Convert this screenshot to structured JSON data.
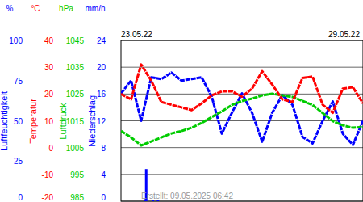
{
  "chart_data": {
    "type": "line",
    "grid": true,
    "footer": "Erstellt: 09.05.2025 06:42",
    "xlim": [
      0,
      144
    ],
    "xticks": [
      {
        "value": 0,
        "label": "23.05.22"
      },
      {
        "value": 144,
        "label": "29.05.22"
      }
    ],
    "axes": [
      {
        "name": "Luftfeuchtigkeit",
        "unit": "%",
        "color": "#0000ff",
        "lim": [
          0,
          100
        ],
        "ticks": [
          0,
          25,
          50,
          75,
          100
        ]
      },
      {
        "name": "Temperatur",
        "unit": "°C",
        "color": "#ff0000",
        "lim": [
          -20,
          40
        ],
        "ticks": [
          -20,
          -10,
          0,
          10,
          20,
          30,
          40
        ]
      },
      {
        "name": "Luftdruck",
        "unit": "hPa",
        "color": "#00cc00",
        "lim": [
          985,
          1045
        ],
        "ticks": [
          985,
          995,
          1005,
          1015,
          1025,
          1035,
          1045
        ]
      },
      {
        "name": "Niederschlag",
        "unit": "mm/h",
        "color": "#0000ff",
        "lim": [
          0,
          24
        ],
        "ticks": [
          0,
          4,
          8,
          12,
          16,
          20,
          24
        ]
      }
    ],
    "series": [
      {
        "name": "Luftfeuchtigkeit",
        "axis": 0,
        "type": "line",
        "color": "#0000ff",
        "x": [
          0,
          6,
          12,
          18,
          24,
          30,
          36,
          42,
          48,
          54,
          60,
          66,
          72,
          78,
          84,
          90,
          96,
          102,
          108,
          114,
          120,
          126,
          132,
          138,
          144
        ],
        "values": [
          67,
          75,
          50,
          77,
          76,
          80,
          75,
          76,
          77,
          65,
          42,
          55,
          67,
          55,
          37,
          55,
          66,
          60,
          40,
          36,
          50,
          62,
          42,
          35,
          50
        ]
      },
      {
        "name": "Luftdruck",
        "axis": 2,
        "type": "line",
        "color": "#00cc00",
        "x": [
          0,
          6,
          12,
          18,
          24,
          30,
          36,
          42,
          48,
          54,
          60,
          66,
          72,
          78,
          84,
          90,
          96,
          102,
          108,
          114,
          120,
          126,
          132,
          138,
          144
        ],
        "values": [
          1011.2,
          1008.8,
          1005.8,
          1007.3,
          1008.8,
          1010.3,
          1011.2,
          1012.4,
          1014.2,
          1016.4,
          1018.5,
          1020.9,
          1022.4,
          1023.3,
          1024.5,
          1025.1,
          1024.5,
          1023.9,
          1022.4,
          1020.9,
          1017.9,
          1014.9,
          1013.3,
          1012.4,
          1012.7
        ]
      },
      {
        "name": "Temperatur",
        "axis": 1,
        "type": "line",
        "color": "#ff0000",
        "x": [
          0,
          6,
          12,
          18,
          24,
          30,
          36,
          42,
          48,
          54,
          60,
          66,
          72,
          78,
          84,
          90,
          96,
          102,
          108,
          114,
          120,
          126,
          132,
          138,
          144
        ],
        "values": [
          20,
          18,
          31,
          25,
          17,
          16,
          15,
          14,
          16.5,
          19.5,
          21,
          21,
          19,
          22,
          28.5,
          23.5,
          18,
          17,
          26,
          26.5,
          16,
          13,
          22,
          22.5,
          16.5
        ]
      },
      {
        "name": "Niederschlag",
        "axis": 3,
        "type": "bar",
        "color": "#0000ff",
        "x": [
          14.5,
          15,
          19,
          22
        ],
        "values": [
          0.3,
          4.8,
          0.2,
          0.2
        ]
      }
    ]
  }
}
